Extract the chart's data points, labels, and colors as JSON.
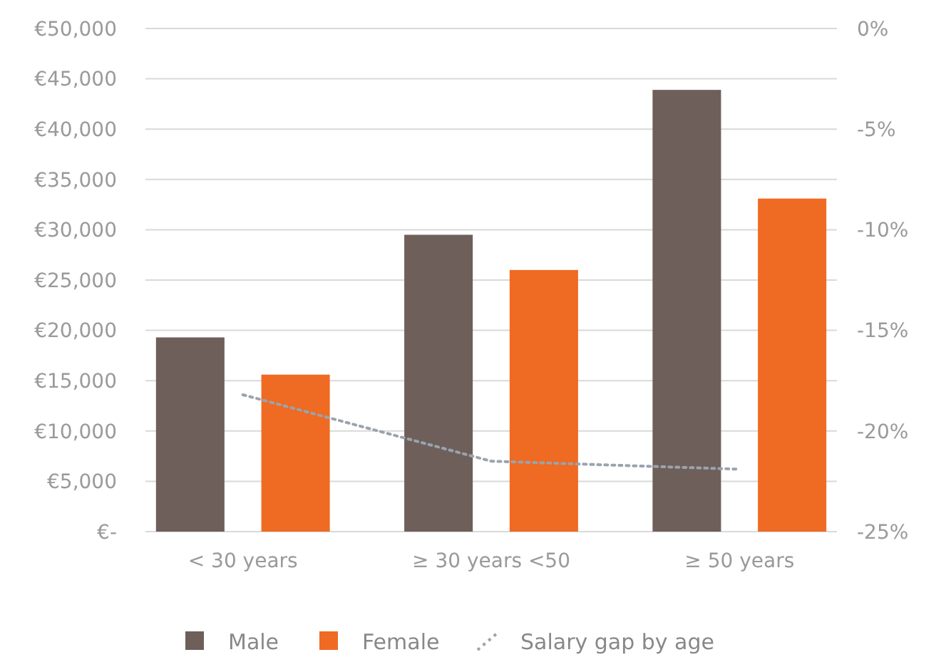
{
  "chart_data": {
    "type": "bar",
    "categories": [
      "< 30 years",
      "≥ 30 years <50",
      "≥ 50 years"
    ],
    "series": [
      {
        "name": "Male",
        "color": "#6e5f5b",
        "values": [
          19300,
          29500,
          43900
        ]
      },
      {
        "name": "Female",
        "color": "#ef6a22",
        "values": [
          15600,
          26000,
          33100
        ]
      },
      {
        "name": "Salary gap by age",
        "type": "line",
        "axis": "y2",
        "color": "#9aa3ad",
        "line_style": "dotted",
        "marker": "none",
        "values": [
          -18.2,
          -21.5,
          -21.9
        ]
      }
    ],
    "ylim": [
      0,
      50000
    ],
    "yticks": [
      {
        "value": 0,
        "label": "€-"
      },
      {
        "value": 5000,
        "label": "€5,000"
      },
      {
        "value": 10000,
        "label": "€10,000"
      },
      {
        "value": 15000,
        "label": "€15,000"
      },
      {
        "value": 20000,
        "label": "€20,000"
      },
      {
        "value": 25000,
        "label": "€25,000"
      },
      {
        "value": 30000,
        "label": "€30,000"
      },
      {
        "value": 35000,
        "label": "€35,000"
      },
      {
        "value": 40000,
        "label": "€40,000"
      },
      {
        "value": 45000,
        "label": "€45,000"
      },
      {
        "value": 50000,
        "label": "€50,000"
      }
    ],
    "y2lim": [
      -25,
      0
    ],
    "y2ticks": [
      {
        "value": -25,
        "label": "-25%"
      },
      {
        "value": -20,
        "label": "-20%"
      },
      {
        "value": -15,
        "label": "-15%"
      },
      {
        "value": -10,
        "label": "-10%"
      },
      {
        "value": -5,
        "label": "-5%"
      },
      {
        "value": 0,
        "label": "0%"
      }
    ],
    "grid": "y",
    "legend": "bottom"
  }
}
